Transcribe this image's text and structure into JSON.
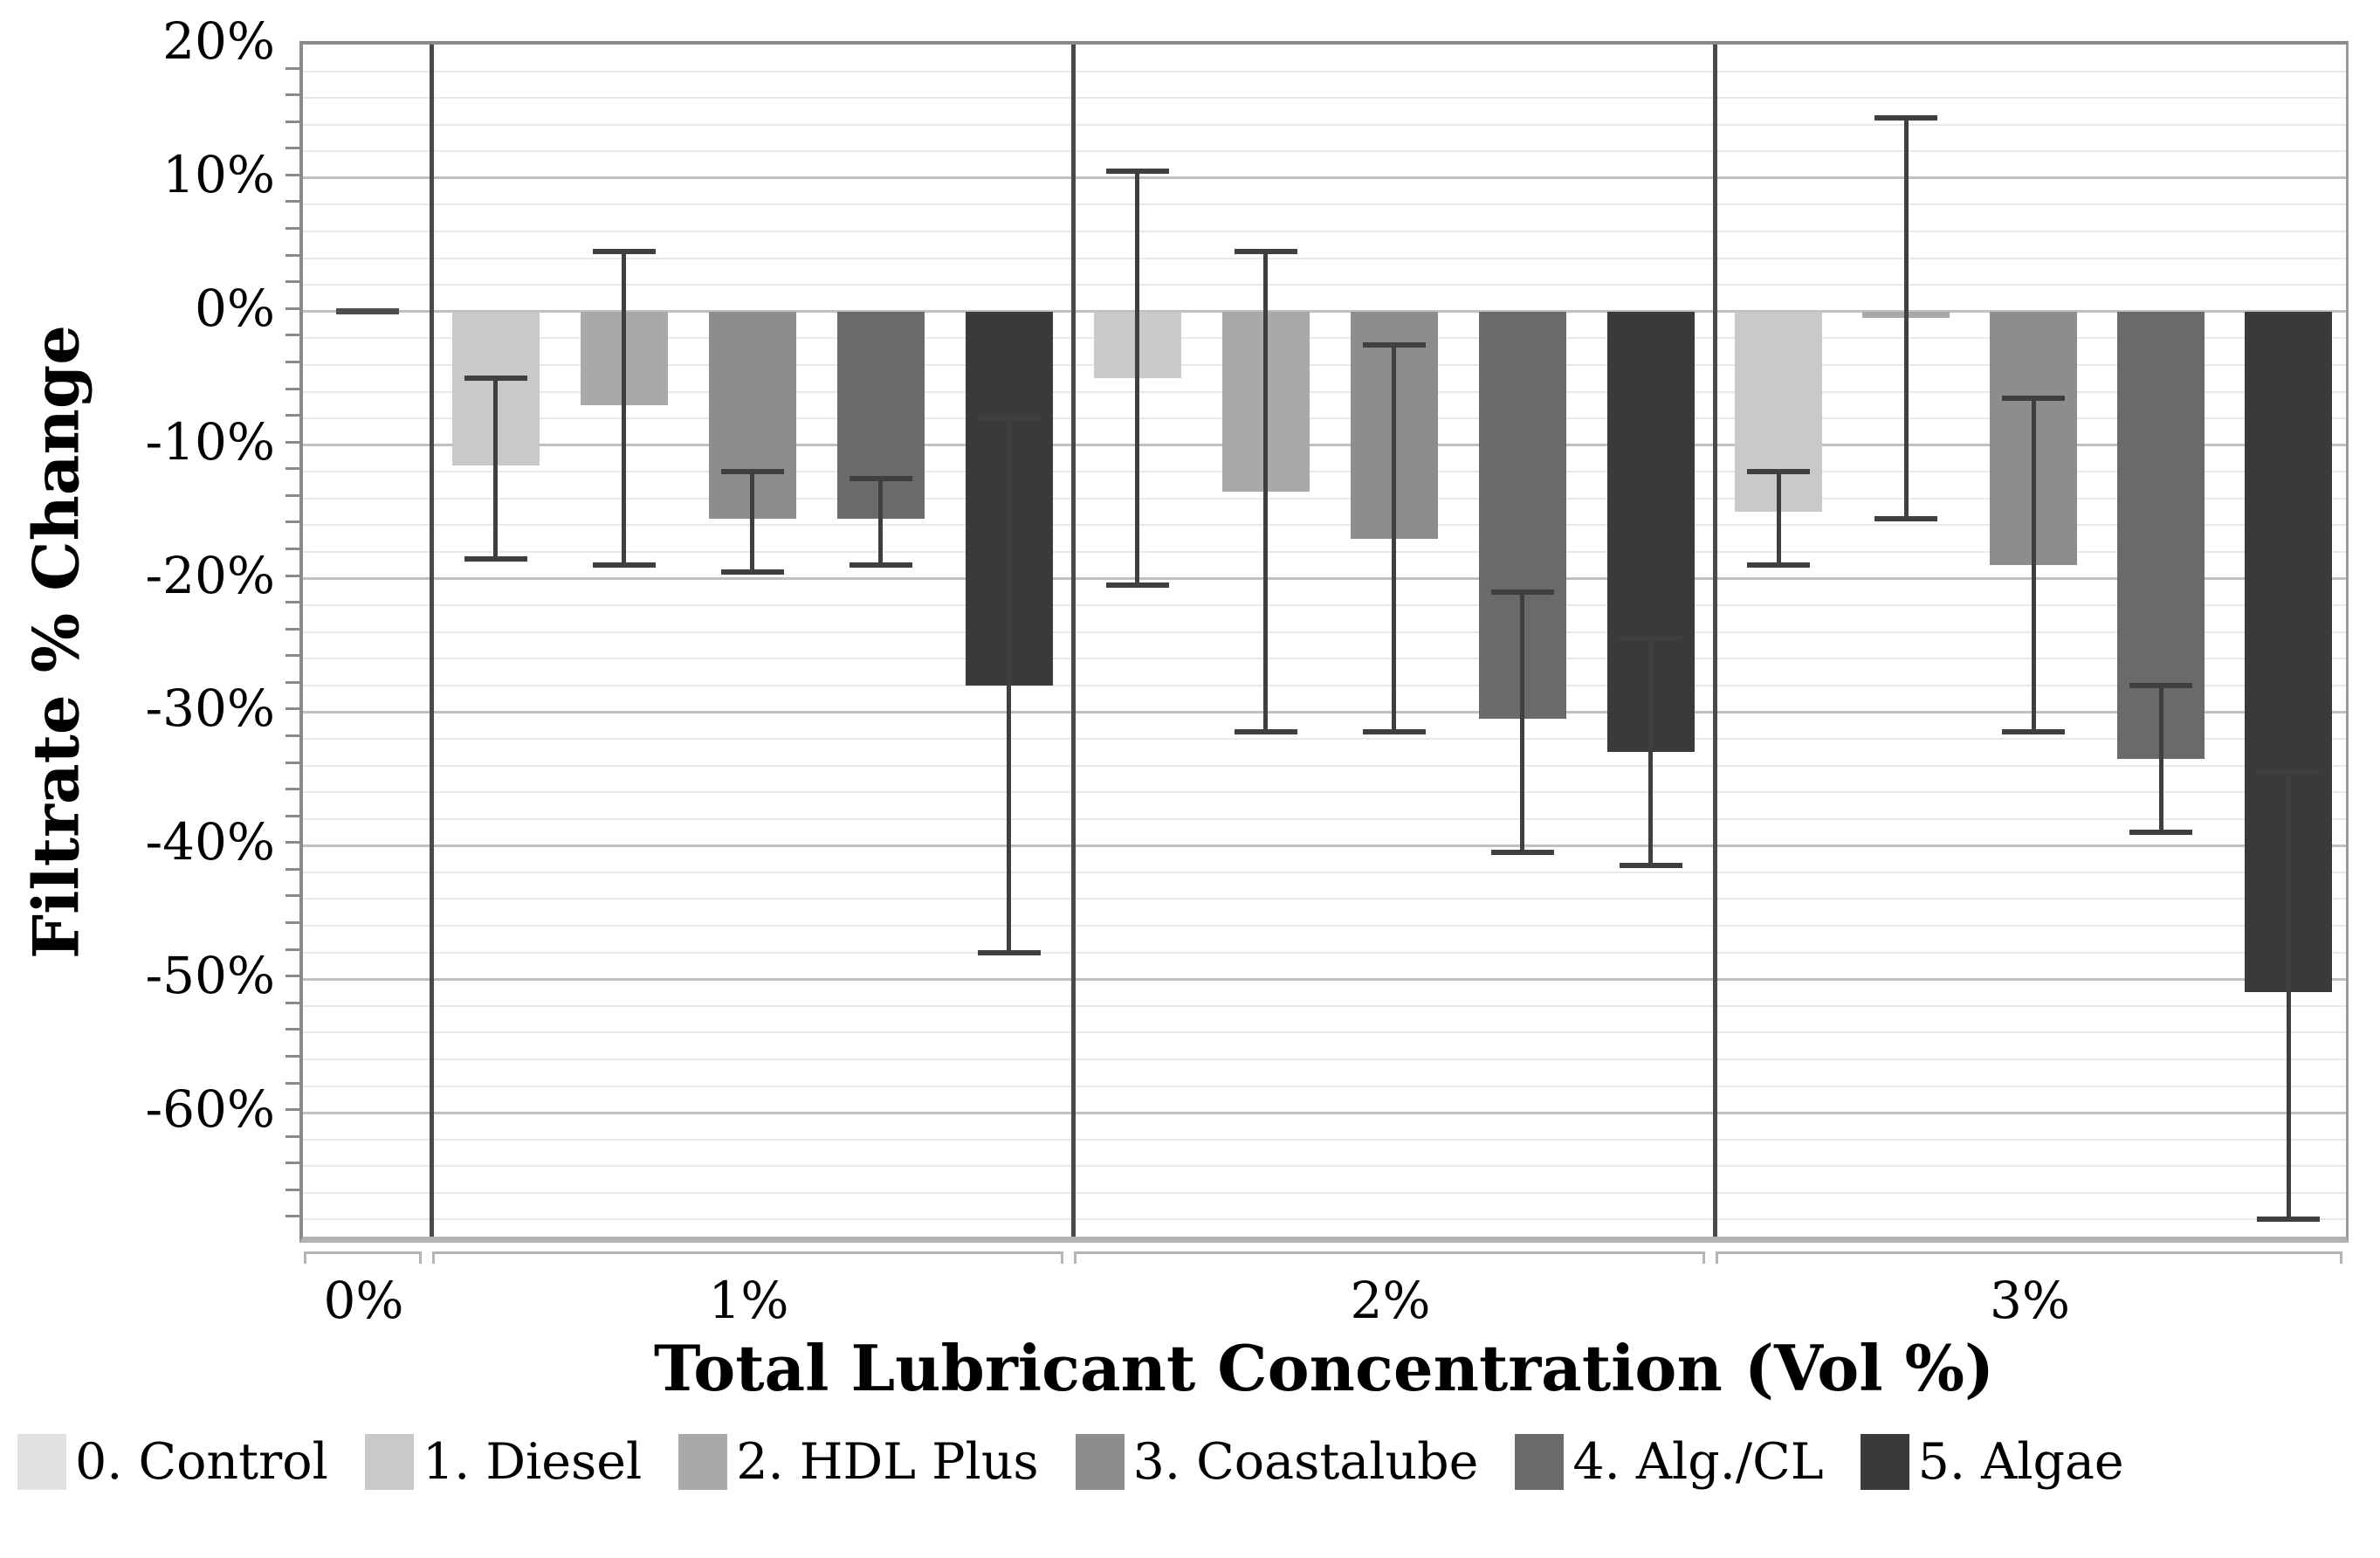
{
  "chart_data": {
    "type": "bar",
    "subtype": "grouped-vertical-bars-with-error-bars",
    "title": "",
    "xlabel": "Total Lubricant Concentration (Vol %)",
    "ylabel": "Filtrate % Change",
    "grid": "on",
    "y_axis": {
      "min": -70,
      "max": 20,
      "major_step": 10,
      "minor_step": 2,
      "ticks": [
        {
          "v": 20,
          "label": "20%"
        },
        {
          "v": 10,
          "label": "10%"
        },
        {
          "v": 0,
          "label": "0%"
        },
        {
          "v": -10,
          "label": "-10%"
        },
        {
          "v": -20,
          "label": "-20%"
        },
        {
          "v": -30,
          "label": "-30%"
        },
        {
          "v": -40,
          "label": "-40%"
        },
        {
          "v": -50,
          "label": "-50%"
        },
        {
          "v": -60,
          "label": "-60%"
        }
      ]
    },
    "x_categories": [
      "0%",
      "1%",
      "2%",
      "3%"
    ],
    "legend": {
      "position": "bottom",
      "items": [
        {
          "label": "0. Control",
          "color": "#e2e2e2"
        },
        {
          "label": "1. Diesel",
          "color": "#c9c9c9"
        },
        {
          "label": "2. HDL Plus",
          "color": "#a9a9a9"
        },
        {
          "label": "3. Coastalube",
          "color": "#8d8d8d"
        },
        {
          "label": "4. Alg./CL",
          "color": "#6a6a6a"
        },
        {
          "label": "5. Algae",
          "color": "#3a3a3a"
        }
      ]
    },
    "groups": [
      {
        "category": "0%",
        "bars": [
          {
            "series": 0,
            "value": 0,
            "error_high": null,
            "error_low": null,
            "render": "dash"
          }
        ]
      },
      {
        "category": "1%",
        "bars": [
          {
            "series": 1,
            "value": -11.5,
            "error_high": -5,
            "error_low": -18.5
          },
          {
            "series": 2,
            "value": -7,
            "error_high": 4.5,
            "error_low": -19
          },
          {
            "series": 3,
            "value": -15.5,
            "error_high": -12,
            "error_low": -19.5
          },
          {
            "series": 4,
            "value": -15.5,
            "error_high": -12.5,
            "error_low": -19
          },
          {
            "series": 5,
            "value": -28,
            "error_high": -8,
            "error_low": -48
          }
        ]
      },
      {
        "category": "2%",
        "bars": [
          {
            "series": 1,
            "value": -5,
            "error_high": 10.5,
            "error_low": -20.5
          },
          {
            "series": 2,
            "value": -13.5,
            "error_high": 4.5,
            "error_low": -31.5
          },
          {
            "series": 3,
            "value": -17,
            "error_high": -2.5,
            "error_low": -31.5
          },
          {
            "series": 4,
            "value": -30.5,
            "error_high": -21,
            "error_low": -40.5
          },
          {
            "series": 5,
            "value": -33,
            "error_high": -24.5,
            "error_low": -41.5
          }
        ]
      },
      {
        "category": "3%",
        "bars": [
          {
            "series": 1,
            "value": -15,
            "error_high": -12,
            "error_low": -19
          },
          {
            "series": 2,
            "value": -0.5,
            "error_high": 14.5,
            "error_low": -15.5
          },
          {
            "series": 3,
            "value": -19,
            "error_high": -6.5,
            "error_low": -31.5
          },
          {
            "series": 4,
            "value": -33.5,
            "error_high": -28,
            "error_low": -39
          },
          {
            "series": 5,
            "value": -51,
            "error_high": -34.5,
            "error_low": -68
          }
        ]
      }
    ],
    "style_colors": {
      "error_bar": "#3f3f3f",
      "control_dash": "#4d4d4d",
      "minor_gridline": "#e9e9e9",
      "major_gridline": "#c0c0c0",
      "panel_separator": "#4a4a4a",
      "axis_spine": "#8a8a8a"
    }
  }
}
